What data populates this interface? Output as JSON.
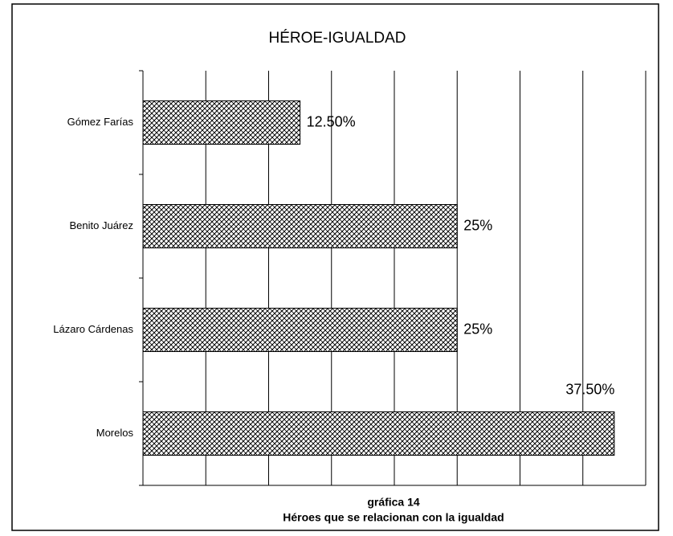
{
  "chart_data": {
    "type": "barh",
    "title": "HÉROE-IGUALDAD",
    "categories": [
      "Gómez Farías",
      "Benito Juárez",
      "Lázaro Cárdenas",
      "Morelos"
    ],
    "values": [
      12.5,
      25,
      25,
      37.5
    ],
    "value_labels": [
      "12.50%",
      "25%",
      "25%",
      "37.50%"
    ],
    "xlim": [
      0,
      40
    ],
    "xticks": [
      0,
      5,
      10,
      15,
      20,
      25,
      30,
      35,
      40
    ],
    "grid": true,
    "xlabel": [
      "gráfica 14",
      "Héroes que se relacionan con la igualdad"
    ]
  }
}
